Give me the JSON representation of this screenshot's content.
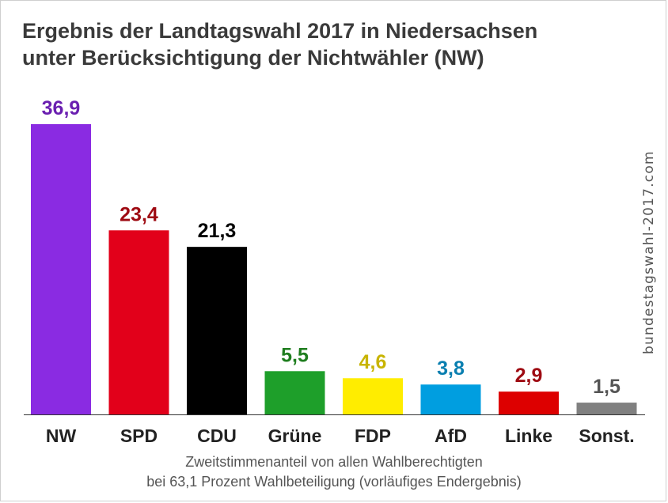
{
  "chart_data": {
    "type": "bar",
    "title_lines": [
      "Ergebnis der Landtagswahl 2017 in Niedersachsen",
      "unter Berücksichtigung der Nichtwähler (NW)"
    ],
    "categories": [
      "NW",
      "SPD",
      "CDU",
      "Grüne",
      "FDP",
      "AfD",
      "Linke",
      "Sonst."
    ],
    "values": [
      36.9,
      23.4,
      21.3,
      5.5,
      4.6,
      3.8,
      2.9,
      1.5
    ],
    "value_labels": [
      "36,9",
      "23,4",
      "21,3",
      "5,5",
      "4,6",
      "3,8",
      "2,9",
      "1,5"
    ],
    "bar_colors": [
      "#8a2be2",
      "#e2001a",
      "#000000",
      "#1e9f2a",
      "#ffed00",
      "#009ee0",
      "#dd0000",
      "#808080"
    ],
    "label_colors": [
      "#6a1fb0",
      "#9e0a12",
      "#000000",
      "#1e7d1e",
      "#c8b400",
      "#0a7fb0",
      "#9e0a12",
      "#555555"
    ],
    "ylim": [
      0,
      40
    ],
    "grid": false,
    "caption_lines": [
      "Zweitstimmenanteil von allen Wahlberechtigten",
      "bei 63,1 Prozent Wahlbeteiligung (vorläufiges Endergebnis)"
    ],
    "watermark": "bundestagswahl-2017.com"
  }
}
